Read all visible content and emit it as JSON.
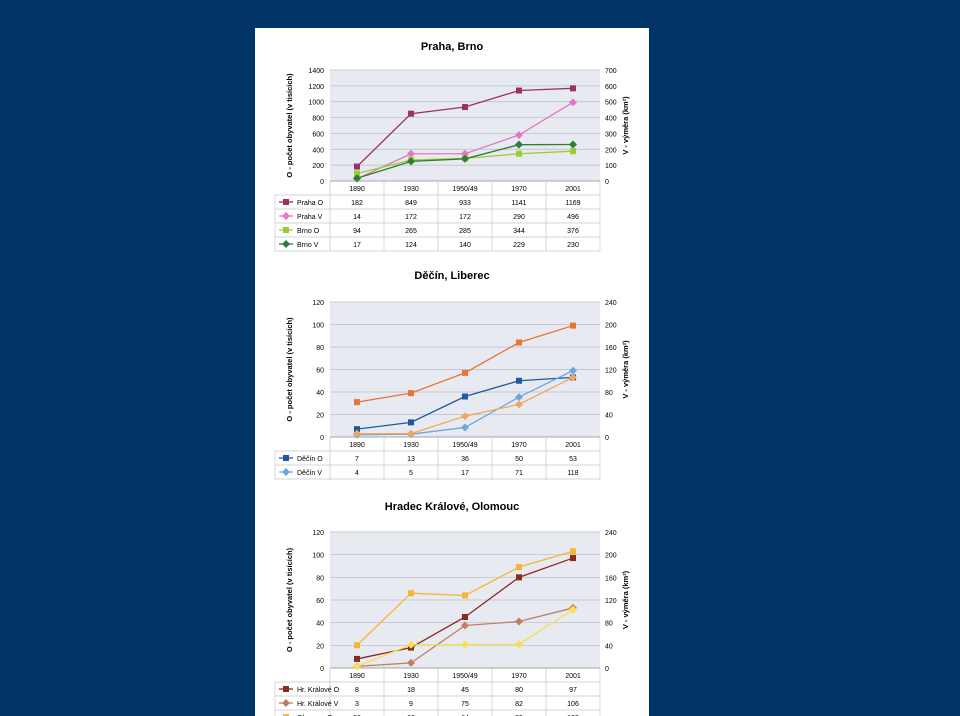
{
  "chart_data": [
    {
      "type": "line",
      "title": "Praha, Brno",
      "ylabel": "O - počet obyvatel (v tisících)",
      "y2label": "V - výměra (km²)",
      "ylim": [
        0,
        1400
      ],
      "y2lim": [
        0,
        700
      ],
      "yticks": [
        "0",
        "200",
        "400",
        "600",
        "800",
        "1000",
        "1200",
        "1400"
      ],
      "y2ticks": [
        "0",
        "100",
        "200",
        "300",
        "400",
        "500",
        "600",
        "700"
      ],
      "categories": [
        "1890",
        "1930",
        "1950/49",
        "1970",
        "2001"
      ],
      "grid": true,
      "legend": "table-below",
      "series": [
        {
          "name": "Praha O",
          "axis": "left",
          "marker": "square",
          "color": "#993366",
          "values": [
            182,
            849,
            933,
            1141,
            1169
          ]
        },
        {
          "name": "Praha V",
          "axis": "right",
          "marker": "diamond",
          "color": "#E377C2",
          "values": [
            14,
            172,
            172,
            290,
            496
          ]
        },
        {
          "name": "Brno O",
          "axis": "left",
          "marker": "square",
          "color": "#9ACD32",
          "values": [
            94,
            265,
            285,
            344,
            376
          ]
        },
        {
          "name": "Brno V",
          "axis": "right",
          "marker": "diamond",
          "color": "#2E7D32",
          "values": [
            17,
            124,
            140,
            229,
            230
          ]
        }
      ]
    },
    {
      "type": "line",
      "title": "Děčín, Liberec",
      "ylabel": "O - počet obyvatel (v tisících)",
      "y2label": "V - výměra (km²)",
      "ylim": [
        0,
        120
      ],
      "y2lim": [
        0,
        240
      ],
      "yticks": [
        "0",
        "20",
        "40",
        "60",
        "80",
        "100",
        "120"
      ],
      "y2ticks": [
        "0",
        "40",
        "80",
        "120",
        "160",
        "200",
        "240"
      ],
      "categories": [
        "1890",
        "1930",
        "1950/49",
        "1970",
        "2001"
      ],
      "grid": true,
      "legend": "table-below",
      "series": [
        {
          "name": "Děčín O",
          "axis": "left",
          "marker": "square",
          "color": "#1F5AA0",
          "values": [
            7,
            13,
            36,
            50,
            53
          ]
        },
        {
          "name": "Děčín V",
          "axis": "right",
          "marker": "diamond",
          "color": "#6FA8DC",
          "values": [
            4,
            5,
            17,
            71,
            118
          ]
        },
        {
          "name": "Liberec O",
          "axis": "left",
          "marker": "square",
          "color": "#E8743B",
          "values": [
            31,
            39,
            57,
            84,
            99
          ]
        },
        {
          "name": "Liberec V",
          "axis": "right",
          "marker": "diamond",
          "color": "#F0A860",
          "values": [
            6,
            6,
            37,
            58,
            106
          ]
        }
      ]
    },
    {
      "type": "line",
      "title": "Hradec Králové, Olomouc",
      "ylabel": "O - počet obyvatel (v tisících)",
      "y2label": "V - výměra (km²)",
      "ylim": [
        0,
        120
      ],
      "y2lim": [
        0,
        240
      ],
      "yticks": [
        "0",
        "20",
        "40",
        "60",
        "80",
        "100",
        "120"
      ],
      "y2ticks": [
        "0",
        "40",
        "80",
        "120",
        "160",
        "200",
        "240"
      ],
      "categories": [
        "1890",
        "1930",
        "1950/49",
        "1970",
        "2001"
      ],
      "grid": true,
      "legend": "table-below",
      "series": [
        {
          "name": "Hr. Králové O",
          "axis": "left",
          "marker": "square",
          "color": "#8B2A1E",
          "values": [
            8,
            18,
            45,
            80,
            97
          ]
        },
        {
          "name": "Hr. Králové V",
          "axis": "right",
          "marker": "diamond",
          "color": "#C08060",
          "values": [
            3,
            9,
            75,
            82,
            106
          ]
        },
        {
          "name": "Olomouc O",
          "axis": "left",
          "marker": "square",
          "color": "#F5B731",
          "values": [
            20,
            66,
            64,
            89,
            103
          ]
        },
        {
          "name": "Olomouc V",
          "axis": "right",
          "marker": "diamond",
          "color": "#F5E050",
          "values": [
            3,
            41,
            41,
            42,
            103
          ]
        }
      ]
    }
  ]
}
